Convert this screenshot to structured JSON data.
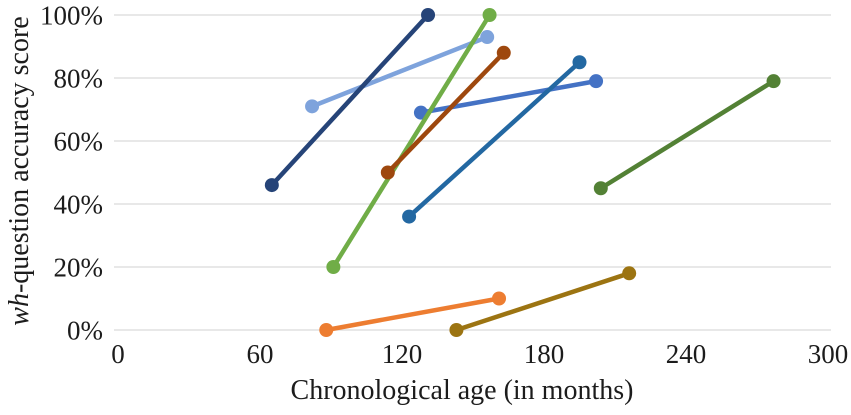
{
  "figure": {
    "xlabel": "Chronological age (in months)",
    "ylabel_italic": "wh",
    "ylabel_rest": "-question accuracy score"
  },
  "chart_data": {
    "type": "line",
    "title": "",
    "xlabel": "Chronological age (in months)",
    "ylabel": "wh-question accuracy score",
    "xlim": [
      0,
      300
    ],
    "ylim": [
      0,
      100
    ],
    "grid": "horizontal-only",
    "grid_color": "#D9D9D9",
    "text_color": "#1C1C1C",
    "background": "#FFFFFF",
    "legend": "none",
    "marker": "circle",
    "x_ticks": [
      {
        "value": 0,
        "label": "0"
      },
      {
        "value": 60,
        "label": "60"
      },
      {
        "value": 120,
        "label": "120"
      },
      {
        "value": 180,
        "label": "180"
      },
      {
        "value": 240,
        "label": "240"
      },
      {
        "value": 300,
        "label": "300"
      }
    ],
    "y_ticks": [
      {
        "value": 0,
        "label": "0%"
      },
      {
        "value": 20,
        "label": "20%"
      },
      {
        "value": 40,
        "label": "40%"
      },
      {
        "value": 60,
        "label": "60%"
      },
      {
        "value": 80,
        "label": "80%"
      },
      {
        "value": 100,
        "label": "100%"
      }
    ],
    "series": [
      {
        "name": "line-light-blue",
        "color": "#7EA3DC",
        "points": [
          [
            82,
            71
          ],
          [
            156,
            93
          ]
        ]
      },
      {
        "name": "line-navy",
        "color": "#264478",
        "points": [
          [
            65,
            46
          ],
          [
            131,
            100
          ]
        ]
      },
      {
        "name": "line-royal-blue",
        "color": "#4472C4",
        "points": [
          [
            128,
            69
          ],
          [
            202,
            79
          ]
        ]
      },
      {
        "name": "line-bright-green",
        "color": "#70AD47",
        "points": [
          [
            91,
            20
          ],
          [
            157,
            100
          ]
        ]
      },
      {
        "name": "line-brick-red",
        "color": "#9E480E",
        "points": [
          [
            114,
            50
          ],
          [
            163,
            88
          ]
        ]
      },
      {
        "name": "line-steel-blue",
        "color": "#2368A2",
        "points": [
          [
            123,
            36
          ],
          [
            195,
            85
          ]
        ]
      },
      {
        "name": "line-dark-green",
        "color": "#538135",
        "points": [
          [
            204,
            45
          ],
          [
            277,
            79
          ]
        ]
      },
      {
        "name": "line-orange",
        "color": "#ED7D31",
        "points": [
          [
            88,
            0
          ],
          [
            161,
            10
          ]
        ]
      },
      {
        "name": "line-dark-gold",
        "color": "#9C7412",
        "points": [
          [
            143,
            0
          ],
          [
            216,
            18
          ]
        ]
      }
    ]
  }
}
